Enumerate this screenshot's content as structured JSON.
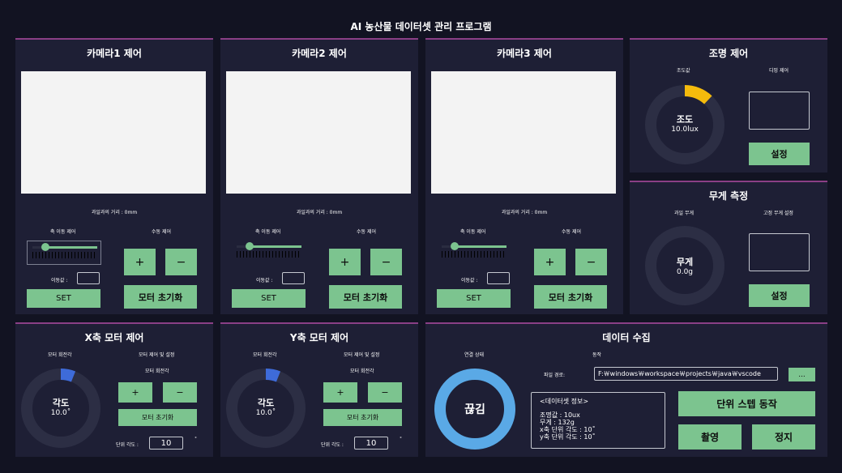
{
  "app": {
    "title": "AI 농산물 데이터셋 관리 프로그램"
  },
  "cameras": [
    {
      "title": "카메라1 제어",
      "distance": "과일과의 거리 : 0mm",
      "axis_label": "축 이동 제어",
      "manual_label": "수동 제어",
      "move_label": "이동값 :",
      "move_value": "",
      "set_label": "SET",
      "plus": "+",
      "minus": "−",
      "reset_label": "모터 초기화",
      "slider_level": 0.2
    },
    {
      "title": "카메라2 제어",
      "distance": "과일과의 거리 : 0mm",
      "axis_label": "축 이동 제어",
      "manual_label": "수동 제어",
      "move_label": "이동값 :",
      "move_value": "",
      "set_label": "SET",
      "plus": "+",
      "minus": "−",
      "reset_label": "모터 초기화",
      "slider_level": 0.2
    },
    {
      "title": "카메라3 제어",
      "distance": "과일과의 거리 : 0mm",
      "axis_label": "축 이동 제어",
      "manual_label": "수동 제어",
      "move_label": "이동값 :",
      "move_value": "",
      "set_label": "SET",
      "plus": "+",
      "minus": "−",
      "reset_label": "모터 초기화",
      "slider_level": 0.2
    }
  ],
  "lighting": {
    "title": "조명 제어",
    "gauge_caption": "조도값",
    "dimming_caption": "디밍 제어",
    "gauge_title": "조도",
    "gauge_value": "10.0lux",
    "gauge_level": 0.12,
    "set_label": "설정",
    "color": "#f5bb0c"
  },
  "weight": {
    "title": "무게 측정",
    "gauge_caption": "과일 무게",
    "fixed_caption": "고정 무게 설정",
    "gauge_title": "무게",
    "gauge_value": "0.0g",
    "set_label": "설정"
  },
  "x_motor": {
    "title": "X축 모터 제어",
    "angle_caption": "모터 회전각",
    "control_caption": "모터 제어 및 설정",
    "rotation_caption": "모터 회전각",
    "gauge_title": "각도",
    "gauge_value": "10.0˚",
    "gauge_level": 0.06,
    "plus": "+",
    "minus": "−",
    "reset_label": "모터 초기화",
    "unit_label": "단위 각도 :",
    "unit_value": "10",
    "degree": "˚",
    "color": "#3e6bd9"
  },
  "y_motor": {
    "title": "Y축 모터 제어",
    "angle_caption": "모터 회전각",
    "control_caption": "모터 제어 및 설정",
    "rotation_caption": "모터 회전각",
    "gauge_title": "각도",
    "gauge_value": "10.0˚",
    "gauge_level": 0.06,
    "plus": "+",
    "minus": "−",
    "reset_label": "모터 초기화",
    "unit_label": "단위 각도 :",
    "unit_value": "10",
    "degree": "˚",
    "color": "#3e6bd9"
  },
  "data_collect": {
    "title": "데이터 수집",
    "conn_caption": "연결 상태",
    "action_caption": "동작",
    "status": "끊김",
    "path_label": "파일 경로:",
    "path_value": "F:￦windows￦workspace￦projects￦java￦vscode",
    "browse_label": "...",
    "info_title": "<데이터셋 정보>",
    "info_lines": [
      "조명값 : 10ux",
      "무게 : 132g",
      "x축 단위 각도 : 10˚",
      "y축 단위 각도 : 10˚"
    ],
    "step_label": "단위 스텝 동작",
    "capture_label": "촬영",
    "stop_label": "정지",
    "ring_color": "#5aa9e6"
  }
}
